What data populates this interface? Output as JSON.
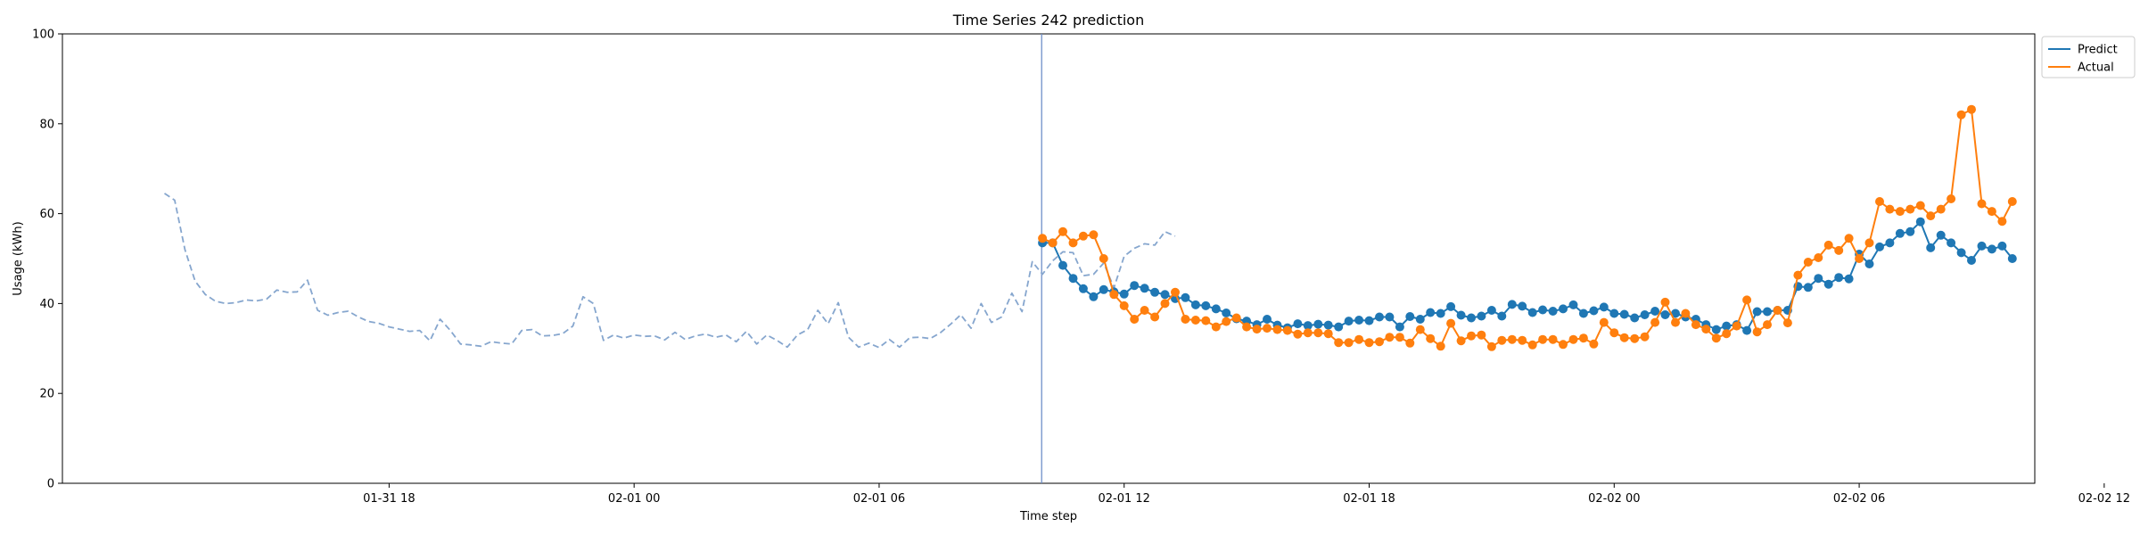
{
  "chart_data": {
    "type": "line",
    "title": "Time Series 242 prediction",
    "xlabel": "Time step",
    "ylabel": "Usage (kWh)",
    "ylim": [
      0,
      100
    ],
    "yticks": [
      0,
      20,
      40,
      60,
      80,
      100
    ],
    "xtick_labels": [
      "01-31 18",
      "02-01 00",
      "02-01 06",
      "02-01 12",
      "02-01 18",
      "02-02 00",
      "02-02 06",
      "02-02 12"
    ],
    "xlim_hours": [
      -2.5,
      45.8
    ],
    "forecast_start_hour": 21.5,
    "legend_position": "outside top-right",
    "series": [
      {
        "name": "",
        "style": "dashed",
        "color": "#86a6ce",
        "step_hours": 0.25,
        "start_hour": 0,
        "values": [
          64.5,
          63.0,
          52.0,
          45.0,
          42.0,
          40.5,
          40.0,
          40.2,
          40.8,
          40.6,
          41.0,
          43.0,
          42.5,
          42.6,
          45.2,
          38.5,
          37.4,
          38.0,
          38.3,
          37.0,
          36.0,
          35.6,
          34.8,
          34.3,
          33.8,
          34.0,
          31.7,
          36.5,
          34.0,
          31.0,
          30.8,
          30.5,
          31.5,
          31.2,
          31.0,
          34.0,
          34.2,
          32.8,
          32.9,
          33.3,
          35.0,
          41.5,
          40.0,
          31.8,
          33.0,
          32.3,
          33.0,
          32.7,
          32.8,
          31.9,
          33.6,
          32.0,
          32.8,
          33.2,
          32.5,
          33.0,
          31.5,
          33.8,
          31.0,
          33.0,
          31.8,
          30.3,
          33.0,
          34.2,
          38.5,
          35.5,
          40.2,
          32.5,
          30.3,
          31.2,
          30.2,
          32.0,
          30.3,
          32.4,
          32.5,
          32.2,
          33.5,
          35.4,
          37.5,
          34.5,
          40.0,
          35.8,
          37.0,
          42.3,
          38.2,
          49.3,
          46.5,
          49.5,
          51.5,
          51.3,
          46.2,
          46.5,
          49.0,
          43.5,
          50.5,
          52.3,
          53.3,
          53.0,
          56.0,
          55.0
        ]
      },
      {
        "name": "Predict",
        "style": "solid-markers",
        "color": "#1f77b4",
        "step_hours": 0.25,
        "start_hour": 21.5,
        "values": [
          53.5,
          53.5,
          48.5,
          45.6,
          43.3,
          41.5,
          43.1,
          42.6,
          42.1,
          44.0,
          43.4,
          42.5,
          42.0,
          41.1,
          41.3,
          39.7,
          39.5,
          38.8,
          37.9,
          36.6,
          36.1,
          35.3,
          36.5,
          35.2,
          34.6,
          35.5,
          35.1,
          35.4,
          35.2,
          34.8,
          36.1,
          36.3,
          36.2,
          37.0,
          37.0,
          34.8,
          37.1,
          36.5,
          38.0,
          37.8,
          39.3,
          37.4,
          36.8,
          37.2,
          38.5,
          37.2,
          39.8,
          39.4,
          38.0,
          38.6,
          38.3,
          38.8,
          39.7,
          37.8,
          38.4,
          39.2,
          37.8,
          37.6,
          36.8,
          37.5,
          38.3,
          37.5,
          37.8,
          37.0,
          36.5,
          35.3,
          34.2,
          35.0,
          35.3,
          34.0,
          38.2,
          38.2,
          38.5,
          38.5,
          43.8,
          43.6,
          45.6,
          44.3,
          45.8,
          45.5,
          51.0,
          48.8,
          52.6,
          53.5,
          55.6,
          56.0,
          58.2,
          52.4,
          55.2,
          53.5,
          51.3,
          49.6,
          52.8,
          52.1,
          52.8,
          50.0
        ]
      },
      {
        "name": "Actual",
        "style": "solid-markers",
        "color": "#ff7f0e",
        "step_hours": 0.25,
        "start_hour": 21.5,
        "values": [
          54.5,
          53.5,
          56.0,
          53.5,
          55.0,
          55.3,
          50.0,
          42.0,
          39.5,
          36.5,
          38.5,
          37.0,
          40.0,
          42.5,
          36.5,
          36.3,
          36.2,
          34.8,
          36.0,
          36.8,
          34.8,
          34.3,
          34.5,
          34.2,
          34.0,
          33.2,
          33.5,
          33.5,
          33.3,
          31.3,
          31.3,
          32.0,
          31.3,
          31.5,
          32.5,
          32.5,
          31.2,
          34.2,
          32.2,
          30.5,
          35.6,
          31.7,
          32.8,
          33.0,
          30.4,
          31.8,
          32.0,
          31.8,
          30.8,
          32.0,
          32.0,
          30.9,
          32.0,
          32.3,
          31.0,
          35.8,
          33.5,
          32.4,
          32.2,
          32.6,
          35.8,
          40.3,
          35.8,
          37.8,
          35.3,
          34.3,
          32.3,
          33.3,
          35.0,
          40.8,
          33.7,
          35.3,
          38.5,
          35.7,
          46.3,
          49.2,
          50.2,
          53.0,
          51.8,
          54.5,
          50.0,
          53.5,
          62.7,
          61.0,
          60.5,
          61.0,
          61.8,
          59.5,
          61.0,
          63.3,
          82.0,
          83.2,
          62.2,
          60.5,
          58.3,
          62.7
        ]
      }
    ]
  }
}
